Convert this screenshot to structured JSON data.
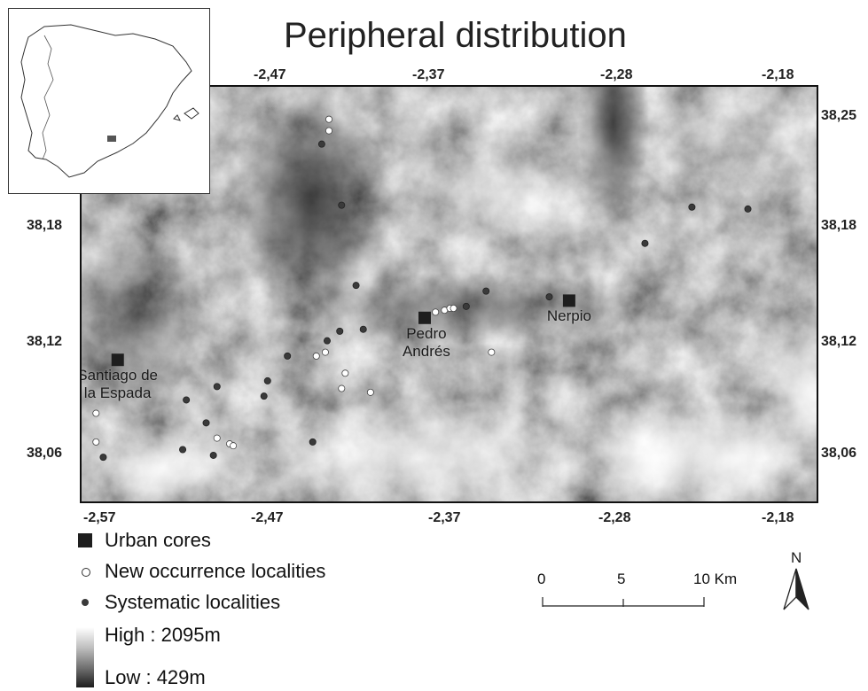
{
  "title": "Peripheral distribution",
  "x_ticks_top": [
    "-2,47",
    "-2,37",
    "-2,28",
    "-2,18"
  ],
  "x_ticks_bottom": [
    "-2,57",
    "-2,47",
    "-2,37",
    "-2,28",
    "-2,18"
  ],
  "y_ticks_left": [
    "38,18",
    "38,12",
    "38,06"
  ],
  "y_ticks_right": [
    "38,25",
    "38,18",
    "38,12",
    "38,06"
  ],
  "towns": [
    {
      "name_line1": "Santiago de",
      "name_line2": "la Espada",
      "lon": -2.553,
      "lat": 38.115
    },
    {
      "name_line1": "Pedro",
      "name_line2": "Andrés",
      "lon": -2.383,
      "lat": 38.137
    },
    {
      "name_line1": "Nerpio",
      "name_line2": "",
      "lon": -2.303,
      "lat": 38.146
    }
  ],
  "new_localities": [
    [
      -2.436,
      38.241
    ],
    [
      -2.436,
      38.235
    ],
    [
      -2.565,
      38.087
    ],
    [
      -2.565,
      38.072
    ],
    [
      -2.498,
      38.074
    ],
    [
      -2.491,
      38.071
    ],
    [
      -2.489,
      38.07
    ],
    [
      -2.443,
      38.117
    ],
    [
      -2.438,
      38.119
    ],
    [
      -2.427,
      38.108
    ],
    [
      -2.429,
      38.1
    ],
    [
      -2.413,
      38.098
    ],
    [
      -2.377,
      38.14
    ],
    [
      -2.372,
      38.141
    ],
    [
      -2.369,
      38.142
    ],
    [
      -2.367,
      38.142
    ],
    [
      -2.346,
      38.119
    ]
  ],
  "systematic_localities": [
    [
      -2.44,
      38.228
    ],
    [
      -2.429,
      38.196
    ],
    [
      -2.421,
      38.154
    ],
    [
      -2.437,
      38.125
    ],
    [
      -2.43,
      38.13
    ],
    [
      -2.417,
      38.131
    ],
    [
      -2.36,
      38.143
    ],
    [
      -2.349,
      38.151
    ],
    [
      -2.314,
      38.148
    ],
    [
      -2.261,
      38.176
    ],
    [
      -2.235,
      38.195
    ],
    [
      -2.204,
      38.194
    ],
    [
      -2.459,
      38.117
    ],
    [
      -2.47,
      38.104
    ],
    [
      -2.472,
      38.096
    ],
    [
      -2.498,
      38.101
    ],
    [
      -2.515,
      38.094
    ],
    [
      -2.504,
      38.082
    ],
    [
      -2.5,
      38.065
    ],
    [
      -2.517,
      38.068
    ],
    [
      -2.561,
      38.064
    ],
    [
      -2.445,
      38.072
    ]
  ],
  "legend": {
    "urban": "Urban cores",
    "new": "New occurrence localities",
    "systematic": "Systematic localities",
    "high": "High : 2095m",
    "low": "Low : 429m"
  },
  "scale_bar": {
    "labels": [
      "0",
      "5",
      "10 Km"
    ]
  },
  "north_label": "N",
  "colors": {
    "frame": "#111111",
    "urban": "#1e1e1e",
    "new_fill": "#ffffff",
    "systematic_fill": "#3a3a3a"
  }
}
